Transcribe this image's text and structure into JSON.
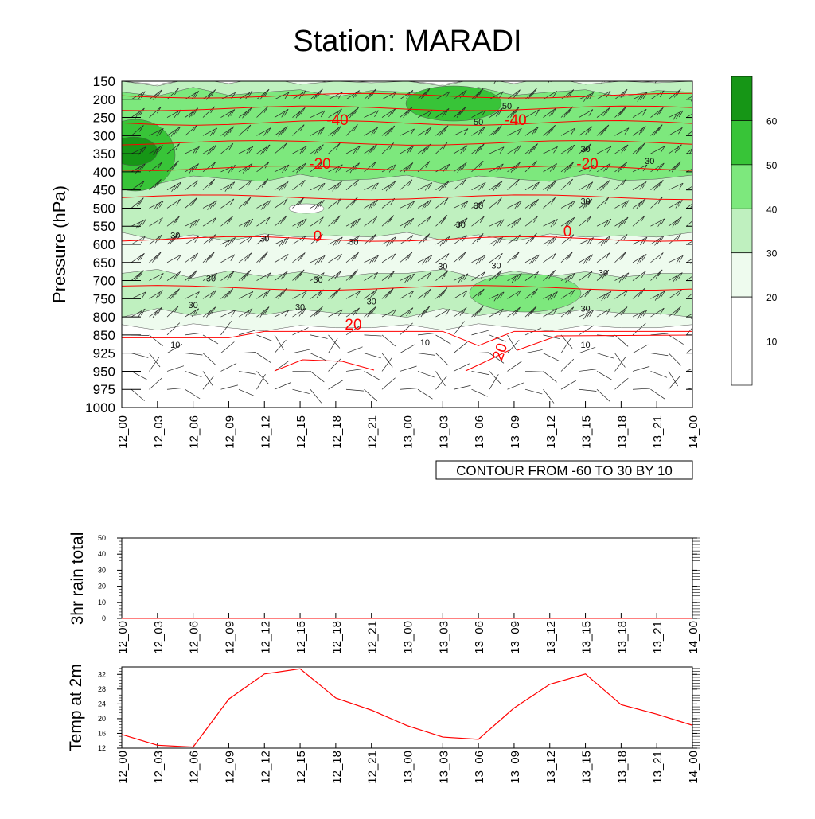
{
  "title": "Station: MARADI",
  "contour_note": "CONTOUR FROM -60 TO 30 BY 10",
  "time_labels": [
    "12_00",
    "12_03",
    "12_06",
    "12_09",
    "12_12",
    "12_15",
    "12_18",
    "12_21",
    "13_00",
    "13_03",
    "13_06",
    "13_09",
    "13_12",
    "13_15",
    "13_18",
    "13_21",
    "14_00"
  ],
  "colors": {
    "temp_contour": "#ff0000",
    "shade_levels": [
      "#ffffff",
      "#eefbee",
      "#bff0bf",
      "#7de87d",
      "#38c438",
      "#169616"
    ],
    "rh_line": "#333333",
    "axes": "#000000"
  },
  "chart_data": [
    {
      "type": "heatmap",
      "title": "Station: MARADI",
      "ylabel": "Pressure (hPa)",
      "y_ticks": [
        150,
        200,
        250,
        300,
        350,
        400,
        450,
        500,
        550,
        600,
        650,
        700,
        750,
        800,
        850,
        925,
        950,
        975,
        1000
      ],
      "x_ticks": [
        "12_00",
        "12_03",
        "12_06",
        "12_09",
        "12_12",
        "12_15",
        "12_18",
        "12_21",
        "13_00",
        "13_03",
        "13_06",
        "13_09",
        "13_12",
        "13_15",
        "13_18",
        "13_21",
        "14_00"
      ],
      "colorbar": {
        "labels": [
          "10",
          "20",
          "30",
          "40",
          "50",
          "60"
        ],
        "levels": [
          0,
          10,
          20,
          30,
          40,
          50,
          60,
          70
        ]
      },
      "temperature_contours": [
        {
          "label": "-40",
          "level": -40,
          "pressure": 265
        },
        {
          "label": "-20",
          "level": -20,
          "pressure": 390
        },
        {
          "label": "0",
          "level": 0,
          "pressure": 585
        },
        {
          "label": "20",
          "level": 20,
          "pressure": 840
        }
      ],
      "rh_contour_labels": [
        {
          "label": "30",
          "time": 1.5,
          "pressure": 575
        },
        {
          "label": "30",
          "time": 4.0,
          "pressure": 583
        },
        {
          "label": "30",
          "time": 6.5,
          "pressure": 592
        },
        {
          "label": "30",
          "time": 2.5,
          "pressure": 693
        },
        {
          "label": "30",
          "time": 5.5,
          "pressure": 697
        },
        {
          "label": "30",
          "time": 2.0,
          "pressure": 767
        },
        {
          "label": "30",
          "time": 5.0,
          "pressure": 772
        },
        {
          "label": "30",
          "time": 7.0,
          "pressure": 757
        },
        {
          "label": "30",
          "time": 9.0,
          "pressure": 660
        },
        {
          "label": "30",
          "time": 10.5,
          "pressure": 658
        },
        {
          "label": "30",
          "time": 13.0,
          "pressure": 777
        },
        {
          "label": "30",
          "time": 13.5,
          "pressure": 678
        },
        {
          "label": "30",
          "time": 9.5,
          "pressure": 545
        },
        {
          "label": "30",
          "time": 10.0,
          "pressure": 492
        },
        {
          "label": "30",
          "time": 13.0,
          "pressure": 480
        },
        {
          "label": "30",
          "time": 13.0,
          "pressure": 337
        },
        {
          "label": "30",
          "time": 14.8,
          "pressure": 370
        },
        {
          "label": "50",
          "time": 10.0,
          "pressure": 262
        },
        {
          "label": "50",
          "time": 10.8,
          "pressure": 218
        },
        {
          "label": "10",
          "time": 1.5,
          "pressure": 890
        },
        {
          "label": "10",
          "time": 8.5,
          "pressure": 880
        },
        {
          "label": "10",
          "time": 13.0,
          "pressure": 890
        }
      ]
    },
    {
      "type": "line",
      "ylabel": "3hr rain total",
      "ylim": [
        0,
        50
      ],
      "y_ticks": [
        0,
        10,
        20,
        30,
        40,
        50
      ],
      "x": [
        "12_00",
        "12_03",
        "12_06",
        "12_09",
        "12_12",
        "12_15",
        "12_18",
        "12_21",
        "13_00",
        "13_03",
        "13_06",
        "13_09",
        "13_12",
        "13_15",
        "13_18",
        "13_21",
        "14_00"
      ],
      "series": [
        {
          "values": [
            0,
            0,
            0,
            0,
            0,
            0,
            0,
            0,
            0,
            0,
            0,
            0,
            0,
            0,
            0,
            0,
            0
          ]
        }
      ]
    },
    {
      "type": "line",
      "ylabel": "Temp at 2m",
      "ylim": [
        12,
        34
      ],
      "y_ticks": [
        12,
        16,
        20,
        24,
        28,
        32
      ],
      "x": [
        "12_00",
        "12_03",
        "12_06",
        "12_09",
        "12_12",
        "12_15",
        "12_18",
        "12_21",
        "13_00",
        "13_03",
        "13_06",
        "13_09",
        "13_12",
        "13_15",
        "13_18",
        "13_21",
        "14_00"
      ],
      "series": [
        {
          "values": [
            15.7,
            12.8,
            12.3,
            25.3,
            32.1,
            33.5,
            25.6,
            22.3,
            18.1,
            15.0,
            14.4,
            22.9,
            29.3,
            32.1,
            23.8,
            21.2,
            18.2
          ]
        }
      ]
    }
  ]
}
